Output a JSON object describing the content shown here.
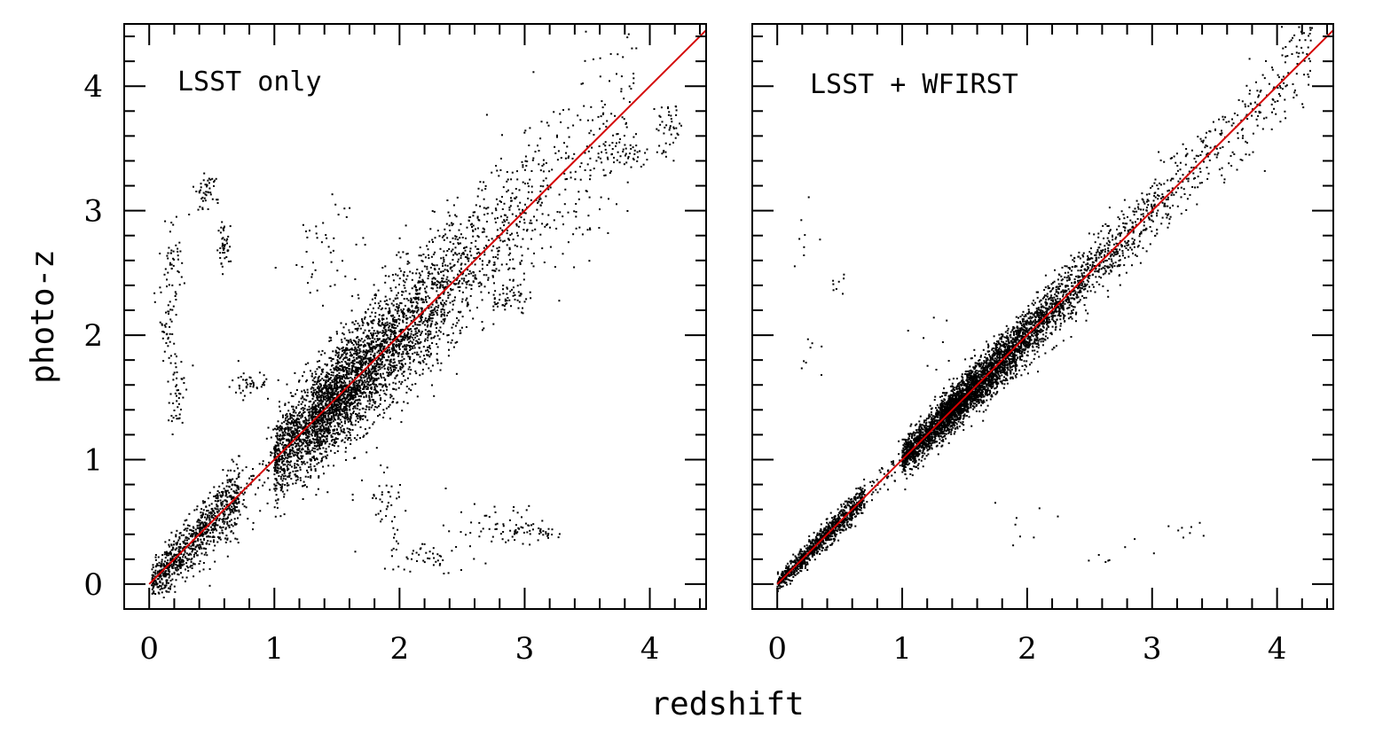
{
  "figure": {
    "xlabel": "redshift",
    "ylabel": "photo-z"
  },
  "colors": {
    "points": "#000000",
    "reference_line": "#d40000",
    "frame": "#000000",
    "background": "#ffffff"
  },
  "chart_data": [
    {
      "type": "scatter",
      "title": "LSST only",
      "xlabel": "redshift",
      "ylabel": "photo-z",
      "xlim": [
        -0.2,
        4.45
      ],
      "ylim": [
        -0.2,
        4.5
      ],
      "xticks": [
        0,
        1,
        2,
        3,
        4
      ],
      "yticks": [
        0,
        1,
        2,
        3,
        4
      ],
      "xtick_labels": [
        "0",
        "1",
        "2",
        "3",
        "4"
      ],
      "ytick_labels": [
        "0",
        "1",
        "2",
        "3",
        "4"
      ],
      "grid": false,
      "reference_line": {
        "x": [
          0,
          4.45
        ],
        "y": [
          0,
          4.45
        ],
        "color": "#d40000"
      },
      "main_sequence": {
        "x_range": [
          0.02,
          3.9
        ],
        "typical_scatter": 0.08
      },
      "outlier_groups": [
        {
          "x_center": 0.45,
          "y_center": 3.15,
          "x_spread": 0.1,
          "y_spread": 0.15
        },
        {
          "x_center": 0.18,
          "y_center": 2.6,
          "x_spread": 0.1,
          "y_spread": 0.3
        },
        {
          "x_center": 0.15,
          "y_center": 2.1,
          "x_spread": 0.08,
          "y_spread": 0.35
        },
        {
          "x_center": 0.22,
          "y_center": 1.5,
          "x_spread": 0.08,
          "y_spread": 0.3
        },
        {
          "x_center": 0.6,
          "y_center": 2.7,
          "x_spread": 0.05,
          "y_spread": 0.2
        },
        {
          "x_center": 0.8,
          "y_center": 1.6,
          "x_spread": 0.15,
          "y_spread": 0.1
        },
        {
          "x_center": 1.4,
          "y_center": 2.6,
          "x_spread": 0.3,
          "y_spread": 0.5
        },
        {
          "x_center": 1.9,
          "y_center": 0.65,
          "x_spread": 0.2,
          "y_spread": 0.3
        },
        {
          "x_center": 2.2,
          "y_center": 0.2,
          "x_spread": 0.35,
          "y_spread": 0.12
        },
        {
          "x_center": 2.8,
          "y_center": 0.45,
          "x_spread": 0.4,
          "y_spread": 0.2
        },
        {
          "x_center": 3.1,
          "y_center": 0.42,
          "x_spread": 0.25,
          "y_spread": 0.08
        },
        {
          "x_center": 3.8,
          "y_center": 3.45,
          "x_spread": 0.25,
          "y_spread": 0.12
        },
        {
          "x_center": 4.15,
          "y_center": 3.6,
          "x_spread": 0.1,
          "y_spread": 0.25
        },
        {
          "x_center": 2.9,
          "y_center": 2.3,
          "x_spread": 0.15,
          "y_spread": 0.1
        }
      ]
    },
    {
      "type": "scatter",
      "title": "LSST + WFIRST",
      "xlabel": "redshift",
      "ylabel": "",
      "xlim": [
        -0.2,
        4.45
      ],
      "ylim": [
        -0.2,
        4.5
      ],
      "xticks": [
        0,
        1,
        2,
        3,
        4
      ],
      "yticks": [
        0,
        1,
        2,
        3,
        4
      ],
      "xtick_labels": [
        "0",
        "1",
        "2",
        "3",
        "4"
      ],
      "ytick_labels": [],
      "grid": false,
      "reference_line": {
        "x": [
          0,
          4.45
        ],
        "y": [
          0,
          4.45
        ],
        "color": "#d40000"
      },
      "main_sequence": {
        "x_range": [
          0.0,
          4.3
        ],
        "typical_scatter": 0.035
      },
      "outlier_groups": [
        {
          "x_center": 0.2,
          "y_center": 2.8,
          "x_spread": 0.1,
          "y_spread": 0.3
        },
        {
          "x_center": 0.3,
          "y_center": 1.8,
          "x_spread": 0.15,
          "y_spread": 0.2
        },
        {
          "x_center": 0.5,
          "y_center": 2.4,
          "x_spread": 0.1,
          "y_spread": 0.1
        },
        {
          "x_center": 1.2,
          "y_center": 1.85,
          "x_spread": 0.2,
          "y_spread": 0.3
        },
        {
          "x_center": 1.9,
          "y_center": 0.5,
          "x_spread": 0.35,
          "y_spread": 0.2
        },
        {
          "x_center": 2.6,
          "y_center": 0.2,
          "x_spread": 0.5,
          "y_spread": 0.15
        },
        {
          "x_center": 3.3,
          "y_center": 0.42,
          "x_spread": 0.2,
          "y_spread": 0.1
        }
      ]
    }
  ]
}
